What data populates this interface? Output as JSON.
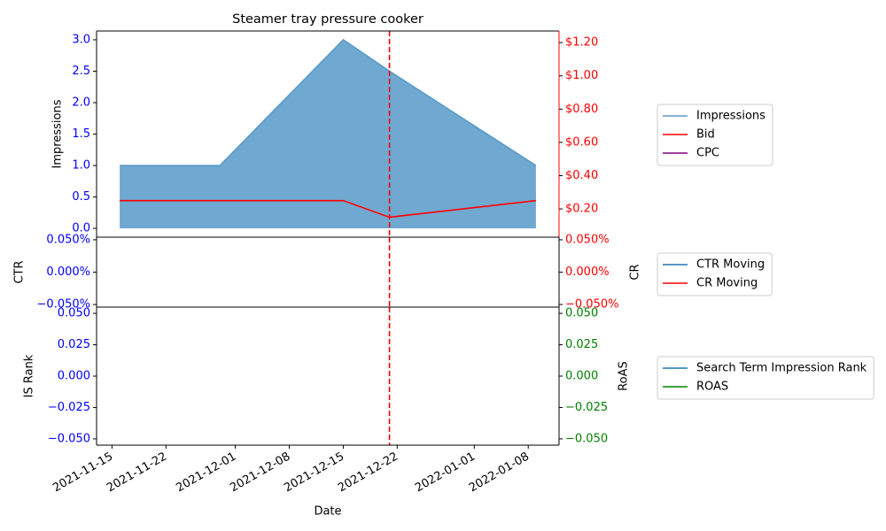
{
  "chart_data": [
    {
      "type": "line",
      "title": "Steamer tray pressure cooker",
      "ylabel": "Impressions",
      "x": [
        "2021-11-16",
        "2021-11-29",
        "2021-12-15",
        "2021-12-21",
        "2022-01-09"
      ],
      "series": [
        {
          "name": "Impressions",
          "color": "#5b9bc8",
          "fill": "#6fa8d0",
          "area": true,
          "values": [
            1,
            1,
            3,
            2.5,
            1
          ]
        },
        {
          "name": "Bid",
          "color": "#ff0000",
          "axis": "y2",
          "values": [
            0.25,
            0.25,
            0.25,
            0.15,
            0.25
          ]
        },
        {
          "name": "CPC",
          "color": "#800080",
          "axis": "y2",
          "values": [
            null,
            null,
            null,
            null,
            null
          ]
        }
      ],
      "xlim": [
        "2021-11-13",
        "2022-01-12"
      ],
      "ylim": [
        -0.14,
        3.14
      ],
      "yticks": [
        {
          "value": 0,
          "label": "0.0"
        },
        0.5,
        {
          "value": 1,
          "label": "1.0"
        },
        1.5,
        {
          "value": 2,
          "label": "2.0"
        },
        2.5,
        {
          "value": 3,
          "label": "3.0"
        }
      ],
      "y2lim": [
        0.03,
        1.27
      ],
      "y2ticks": [
        {
          "value": 0.2,
          "label": "$0.20"
        },
        {
          "value": 0.4,
          "label": "$0.40"
        },
        {
          "value": 0.6,
          "label": "$0.60"
        },
        {
          "value": 0.8,
          "label": "$0.80"
        },
        {
          "value": 1,
          "label": "$1.00"
        },
        {
          "value": 1.2,
          "label": "$1.20"
        }
      ],
      "ytick_color": "#0000ff",
      "y2tick_color": "#ff0000",
      "y2_spine_color": "#ff0000",
      "vlines": [
        {
          "x": "2021-12-21",
          "color": "#ff0000"
        }
      ],
      "legend": "outside right"
    },
    {
      "type": "line",
      "ylabel": "CTR",
      "y2label": "CR",
      "x": [
        "2021-11-16",
        "2021-11-29",
        "2021-12-15",
        "2021-12-21",
        "2022-01-09"
      ],
      "series": [
        {
          "name": "CTR Moving",
          "color": "#1f77b4",
          "values": [
            null,
            null,
            null,
            null,
            null
          ]
        },
        {
          "name": "CR Moving",
          "color": "#ff0000",
          "axis": "y2",
          "values": [
            null,
            null,
            null,
            null,
            null
          ]
        }
      ],
      "xlim": [
        "2021-11-13",
        "2022-01-12"
      ],
      "ylim": [
        -0.054,
        0.054
      ],
      "yticks": [
        {
          "value": -0.05,
          "label": "−0.050%"
        },
        {
          "value": 0,
          "label": "0.000%"
        },
        {
          "value": 0.05,
          "label": "0.050%"
        }
      ],
      "y2lim": [
        -0.054,
        0.054
      ],
      "y2ticks": [
        {
          "value": -0.05,
          "label": "−0.050%"
        },
        {
          "value": 0,
          "label": "0.000%"
        },
        {
          "value": 0.05,
          "label": "0.050%"
        }
      ],
      "ytick_color": "#0000ff",
      "y2tick_color": "#ff0000",
      "vlines": [
        {
          "x": "2021-12-21",
          "color": "#ff0000"
        }
      ],
      "legend": "outside right"
    },
    {
      "type": "line",
      "ylabel": "IS Rank",
      "y2label": "RoAS",
      "xlabel": "Date",
      "x": [
        "2021-11-16",
        "2021-11-29",
        "2021-12-15",
        "2021-12-21",
        "2022-01-09"
      ],
      "series": [
        {
          "name": "Search Term Impression Rank",
          "color": "#1f77b4",
          "values": [
            null,
            null,
            null,
            null,
            null
          ]
        },
        {
          "name": "ROAS",
          "color": "#008000",
          "axis": "y2",
          "values": [
            null,
            null,
            null,
            null,
            null
          ]
        }
      ],
      "xlim": [
        "2021-11-13",
        "2022-01-12"
      ],
      "xticks": [
        "2021-11-15",
        "2021-11-22",
        "2021-12-01",
        "2021-12-08",
        "2021-12-15",
        "2021-12-22",
        "2022-01-01",
        "2022-01-08"
      ],
      "ylim": [
        -0.055,
        0.055
      ],
      "yticks": [
        {
          "value": -0.05,
          "label": "−0.050"
        },
        {
          "value": -0.025,
          "label": "−0.025"
        },
        {
          "value": 0,
          "label": "0.000"
        },
        0.025,
        {
          "value": 0.05,
          "label": "0.050"
        }
      ],
      "y2lim": [
        -0.055,
        0.055
      ],
      "y2ticks": [
        {
          "value": -0.05,
          "label": "−0.050"
        },
        {
          "value": -0.025,
          "label": "−0.025"
        },
        {
          "value": 0,
          "label": "0.000"
        },
        0.025,
        {
          "value": 0.05,
          "label": "0.050"
        }
      ],
      "ytick_color": "#0000ff",
      "y2tick_color": "#008000",
      "vlines": [
        {
          "x": "2021-12-21",
          "color": "#ff0000"
        }
      ],
      "legend": "outside right"
    }
  ]
}
